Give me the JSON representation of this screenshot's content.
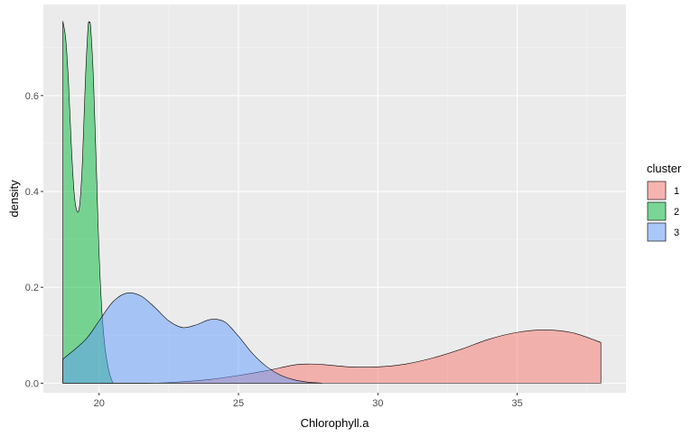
{
  "chart_data": {
    "type": "area",
    "xlabel": "Chlorophyll.a",
    "ylabel": "density",
    "xlim": [
      18.0,
      38.9
    ],
    "ylim": [
      -0.02,
      0.79
    ],
    "x_ticks": [
      20,
      25,
      30,
      35
    ],
    "x_tick_labels": [
      "20",
      "25",
      "30",
      "35"
    ],
    "y_ticks": [
      0.0,
      0.2,
      0.4,
      0.6
    ],
    "y_tick_labels": [
      "0.0",
      "0.2",
      "0.4",
      "0.6"
    ],
    "grid": true,
    "panel_background": "#ebebeb",
    "legend": {
      "title": "cluster",
      "position": "right"
    },
    "series": [
      {
        "name": "1",
        "color": "#f8766d",
        "points": [
          [
            18.7,
            0.0
          ],
          [
            20.0,
            0.0
          ],
          [
            22.0,
            0.0
          ],
          [
            23.0,
            0.003
          ],
          [
            24.0,
            0.008
          ],
          [
            25.0,
            0.016
          ],
          [
            26.0,
            0.026
          ],
          [
            27.0,
            0.038
          ],
          [
            27.5,
            0.04
          ],
          [
            28.0,
            0.039
          ],
          [
            29.0,
            0.034
          ],
          [
            30.0,
            0.034
          ],
          [
            31.0,
            0.04
          ],
          [
            32.0,
            0.053
          ],
          [
            33.0,
            0.071
          ],
          [
            34.0,
            0.092
          ],
          [
            35.0,
            0.106
          ],
          [
            36.0,
            0.111
          ],
          [
            37.0,
            0.105
          ],
          [
            38.0,
            0.085
          ]
        ]
      },
      {
        "name": "2",
        "color": "#00ba38",
        "points": [
          [
            18.7,
            0.755
          ],
          [
            18.8,
            0.72
          ],
          [
            18.9,
            0.63
          ],
          [
            19.0,
            0.5
          ],
          [
            19.1,
            0.4
          ],
          [
            19.2,
            0.36
          ],
          [
            19.3,
            0.37
          ],
          [
            19.4,
            0.46
          ],
          [
            19.5,
            0.62
          ],
          [
            19.6,
            0.74
          ],
          [
            19.65,
            0.752
          ],
          [
            19.7,
            0.74
          ],
          [
            19.8,
            0.63
          ],
          [
            19.9,
            0.45
          ],
          [
            20.0,
            0.27
          ],
          [
            20.1,
            0.15
          ],
          [
            20.2,
            0.08
          ],
          [
            20.3,
            0.04
          ],
          [
            20.4,
            0.015
          ],
          [
            20.5,
            0.0
          ]
        ]
      },
      {
        "name": "3",
        "color": "#619cff",
        "points": [
          [
            18.7,
            0.05
          ],
          [
            19.5,
            0.09
          ],
          [
            20.0,
            0.13
          ],
          [
            20.5,
            0.17
          ],
          [
            21.0,
            0.188
          ],
          [
            21.5,
            0.182
          ],
          [
            22.0,
            0.158
          ],
          [
            22.5,
            0.13
          ],
          [
            23.0,
            0.116
          ],
          [
            23.5,
            0.122
          ],
          [
            24.0,
            0.133
          ],
          [
            24.5,
            0.128
          ],
          [
            25.0,
            0.098
          ],
          [
            25.5,
            0.062
          ],
          [
            26.0,
            0.035
          ],
          [
            26.5,
            0.017
          ],
          [
            27.0,
            0.007
          ],
          [
            27.5,
            0.002
          ],
          [
            28.0,
            0.0
          ]
        ]
      }
    ]
  }
}
